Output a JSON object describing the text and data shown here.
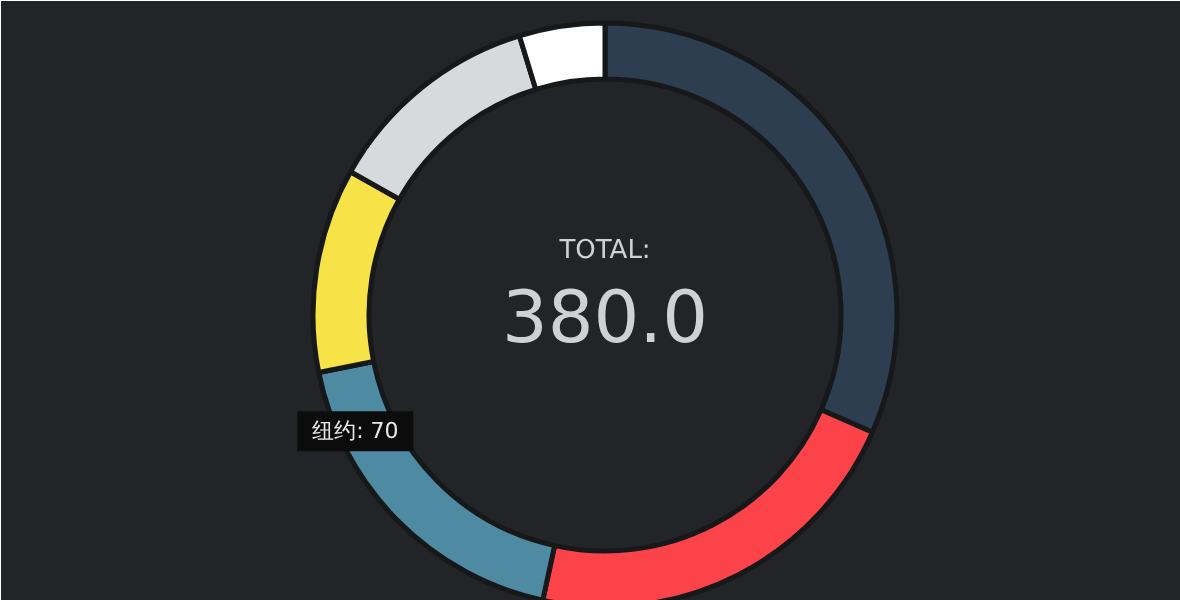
{
  "chart_data": {
    "type": "donut",
    "categories": [
      null,
      null,
      "纽约",
      null,
      null,
      null
    ],
    "values": [
      120,
      83,
      70,
      43,
      46,
      18
    ],
    "colors": [
      "#2c3e50",
      "#fc4349",
      "#4f8aa3",
      "#f7e248",
      "#d7dadb",
      "#ffffff"
    ],
    "value_labels": [
      null,
      null,
      "70",
      null,
      null,
      null
    ],
    "annotations": [
      "TOTAL:",
      "380.0"
    ]
  }
}
